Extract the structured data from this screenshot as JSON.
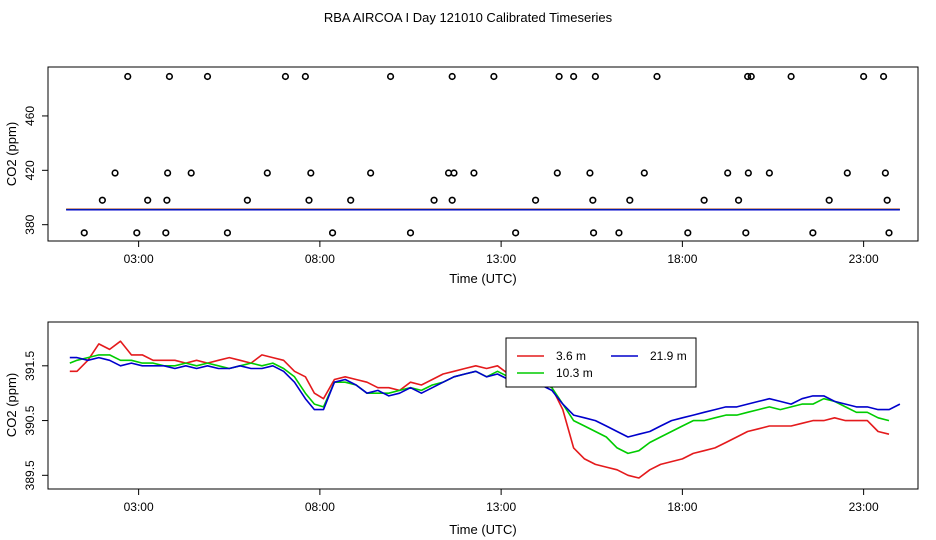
{
  "title": "RBA AIRCOA I  Day 121010  Calibrated Timeseries",
  "colors": {
    "s1": "#e41a1c",
    "s2": "#00cc00",
    "s3": "#0000cc",
    "axis": "#000000"
  },
  "chart_data": [
    {
      "type": "scatter",
      "xlabel": "Time (UTC)",
      "ylabel": "CO2 (ppm)",
      "xlim": [
        0.5,
        24.5
      ],
      "ylim": [
        368,
        496
      ],
      "xticks": [
        3,
        8,
        13,
        18,
        23
      ],
      "xtick_labels": [
        "03:00",
        "08:00",
        "13:00",
        "18:00",
        "23:00"
      ],
      "yticks": [
        380,
        420,
        460
      ],
      "ytick_labels": [
        "380",
        "420",
        "460"
      ],
      "points": {
        "x": [
          1.5,
          2.0,
          2.35,
          2.7,
          2.95,
          3.25,
          3.75,
          3.78,
          3.8,
          3.85,
          4.45,
          4.9,
          5.45,
          6.0,
          6.55,
          7.05,
          7.6,
          7.7,
          7.75,
          8.35,
          8.85,
          9.4,
          9.95,
          10.5,
          11.15,
          11.55,
          11.65,
          11.65,
          11.7,
          12.25,
          12.8,
          13.4,
          13.95,
          14.55,
          14.6,
          15.0,
          15.45,
          15.53,
          15.55,
          15.6,
          16.25,
          16.55,
          16.95,
          17.3,
          18.15,
          18.6,
          19.25,
          19.55,
          19.75,
          19.8,
          19.82,
          19.9,
          20.4,
          21.0,
          21.6,
          22.05,
          22.55,
          23.0,
          23.55,
          23.6,
          23.65,
          23.7
        ],
        "y": [
          374,
          398,
          418,
          489,
          374,
          398,
          374,
          398,
          418,
          489,
          418,
          489,
          374,
          398,
          418,
          489,
          489,
          398,
          418,
          374,
          398,
          418,
          489,
          374,
          398,
          418,
          398,
          489,
          418,
          418,
          489,
          374,
          398,
          418,
          489,
          489,
          418,
          398,
          374,
          489,
          374,
          398,
          418,
          489,
          374,
          398,
          418,
          398,
          374,
          489,
          418,
          489,
          418,
          489,
          374,
          398,
          418,
          489,
          489,
          418,
          398,
          374
        ],
        "color": "#000000"
      },
      "lines_y_level": 391.0
    },
    {
      "type": "line",
      "xlabel": "Time (UTC)",
      "ylabel": "CO2 (ppm)",
      "xlim": [
        0.5,
        24.5
      ],
      "ylim": [
        389.25,
        392.3
      ],
      "xticks": [
        3,
        8,
        13,
        18,
        23
      ],
      "xtick_labels": [
        "03:00",
        "08:00",
        "13:00",
        "18:00",
        "23:00"
      ],
      "yticks": [
        389.5,
        390.5,
        391.5
      ],
      "ytick_labels": [
        "389.5",
        "390.5",
        "391.5"
      ],
      "legend": {
        "placement": "top-center"
      },
      "series": [
        {
          "name": "3.6 m",
          "color": "#e41a1c",
          "x": [
            1.1,
            1.3,
            1.6,
            1.9,
            2.2,
            2.5,
            2.8,
            3.1,
            3.4,
            3.7,
            4.0,
            4.3,
            4.6,
            4.9,
            5.2,
            5.5,
            5.8,
            6.1,
            6.4,
            6.7,
            7.0,
            7.3,
            7.6,
            7.85,
            8.1,
            8.4,
            8.7,
            9.0,
            9.3,
            9.6,
            9.9,
            10.2,
            10.5,
            10.8,
            11.1,
            11.4,
            11.7,
            12.0,
            12.3,
            12.6,
            12.9,
            13.2,
            13.5,
            13.8,
            14.1,
            14.4,
            14.7,
            15.0,
            15.3,
            15.6,
            15.9,
            16.2,
            16.5,
            16.8,
            17.1,
            17.4,
            17.7,
            18.0,
            18.3,
            18.6,
            18.9,
            19.2,
            19.5,
            19.8,
            20.1,
            20.4,
            20.7,
            21.0,
            21.3,
            21.6,
            21.9,
            22.2,
            22.5,
            22.8,
            23.1,
            23.4,
            23.7
          ],
          "y": [
            391.4,
            391.4,
            391.6,
            391.9,
            391.8,
            391.95,
            391.7,
            391.7,
            391.6,
            391.6,
            391.6,
            391.55,
            391.6,
            391.55,
            391.6,
            391.65,
            391.6,
            391.55,
            391.7,
            391.65,
            391.6,
            391.4,
            391.3,
            391.0,
            390.9,
            391.25,
            391.3,
            391.25,
            391.2,
            391.1,
            391.1,
            391.05,
            391.2,
            391.15,
            391.25,
            391.35,
            391.4,
            391.45,
            391.5,
            391.45,
            391.5,
            391.35,
            391.35,
            391.25,
            391.3,
            391.1,
            390.7,
            390.0,
            389.8,
            389.7,
            389.65,
            389.6,
            389.5,
            389.45,
            389.6,
            389.7,
            389.75,
            389.8,
            389.9,
            389.95,
            390.0,
            390.1,
            390.2,
            390.3,
            390.35,
            390.4,
            390.4,
            390.4,
            390.45,
            390.5,
            390.5,
            390.55,
            390.5,
            390.5,
            390.5,
            390.3,
            390.25
          ]
        },
        {
          "name": "10.3 m",
          "color": "#00cc00",
          "x": [
            1.1,
            1.3,
            1.6,
            1.9,
            2.2,
            2.5,
            2.8,
            3.1,
            3.4,
            3.7,
            4.0,
            4.3,
            4.6,
            4.9,
            5.2,
            5.5,
            5.8,
            6.1,
            6.4,
            6.7,
            7.0,
            7.3,
            7.6,
            7.85,
            8.1,
            8.4,
            8.7,
            9.0,
            9.3,
            9.6,
            9.9,
            10.2,
            10.5,
            10.8,
            11.1,
            11.4,
            11.7,
            12.0,
            12.3,
            12.6,
            12.9,
            13.2,
            13.5,
            13.8,
            14.1,
            14.4,
            14.7,
            15.0,
            15.3,
            15.6,
            15.9,
            16.2,
            16.5,
            16.8,
            17.1,
            17.4,
            17.7,
            18.0,
            18.3,
            18.6,
            18.9,
            19.2,
            19.5,
            19.8,
            20.1,
            20.4,
            20.7,
            21.0,
            21.3,
            21.6,
            21.9,
            22.2,
            22.5,
            22.8,
            23.1,
            23.4,
            23.7
          ],
          "y": [
            391.55,
            391.6,
            391.65,
            391.7,
            391.7,
            391.6,
            391.6,
            391.55,
            391.55,
            391.5,
            391.5,
            391.55,
            391.5,
            391.55,
            391.5,
            391.45,
            391.5,
            391.55,
            391.5,
            391.55,
            391.45,
            391.3,
            391.0,
            390.8,
            390.75,
            391.2,
            391.2,
            391.15,
            391.0,
            391.0,
            391.0,
            391.05,
            391.1,
            391.05,
            391.15,
            391.2,
            391.3,
            391.35,
            391.4,
            391.3,
            391.4,
            391.3,
            391.3,
            391.15,
            391.2,
            391.1,
            390.8,
            390.5,
            390.4,
            390.3,
            390.2,
            390.0,
            389.9,
            389.95,
            390.1,
            390.2,
            390.3,
            390.4,
            390.5,
            390.5,
            390.55,
            390.6,
            390.6,
            390.65,
            390.7,
            390.75,
            390.7,
            390.75,
            390.8,
            390.8,
            390.9,
            390.85,
            390.75,
            390.65,
            390.65,
            390.55,
            390.5
          ]
        },
        {
          "name": "21.9 m",
          "color": "#0000cc",
          "x": [
            1.1,
            1.3,
            1.6,
            1.9,
            2.2,
            2.5,
            2.8,
            3.1,
            3.4,
            3.7,
            4.0,
            4.3,
            4.6,
            4.9,
            5.2,
            5.5,
            5.8,
            6.1,
            6.4,
            6.7,
            7.0,
            7.3,
            7.6,
            7.85,
            8.1,
            8.4,
            8.7,
            9.0,
            9.3,
            9.6,
            9.9,
            10.2,
            10.5,
            10.8,
            11.1,
            11.4,
            11.7,
            12.0,
            12.3,
            12.6,
            12.9,
            13.2,
            13.5,
            13.8,
            14.1,
            14.4,
            14.7,
            15.0,
            15.3,
            15.6,
            15.9,
            16.2,
            16.5,
            16.8,
            17.1,
            17.4,
            17.7,
            18.0,
            18.3,
            18.6,
            18.9,
            19.2,
            19.5,
            19.8,
            20.1,
            20.4,
            20.7,
            21.0,
            21.3,
            21.6,
            21.9,
            22.2,
            22.5,
            22.8,
            23.1,
            23.4,
            23.7,
            24.0
          ],
          "y": [
            391.65,
            391.65,
            391.6,
            391.65,
            391.6,
            391.5,
            391.55,
            391.5,
            391.5,
            391.5,
            391.45,
            391.5,
            391.45,
            391.5,
            391.45,
            391.45,
            391.5,
            391.45,
            391.45,
            391.5,
            391.4,
            391.2,
            390.9,
            390.7,
            390.7,
            391.2,
            391.25,
            391.15,
            391.0,
            391.05,
            390.95,
            391.0,
            391.1,
            391.0,
            391.1,
            391.2,
            391.3,
            391.35,
            391.4,
            391.3,
            391.35,
            391.25,
            391.3,
            391.2,
            391.15,
            391.05,
            390.8,
            390.6,
            390.55,
            390.5,
            390.4,
            390.3,
            390.2,
            390.25,
            390.3,
            390.4,
            390.5,
            390.55,
            390.6,
            390.65,
            390.7,
            390.75,
            390.75,
            390.8,
            390.85,
            390.9,
            390.85,
            390.8,
            390.9,
            390.95,
            390.95,
            390.85,
            390.8,
            390.75,
            390.75,
            390.7,
            390.7,
            390.8
          ]
        }
      ]
    }
  ]
}
